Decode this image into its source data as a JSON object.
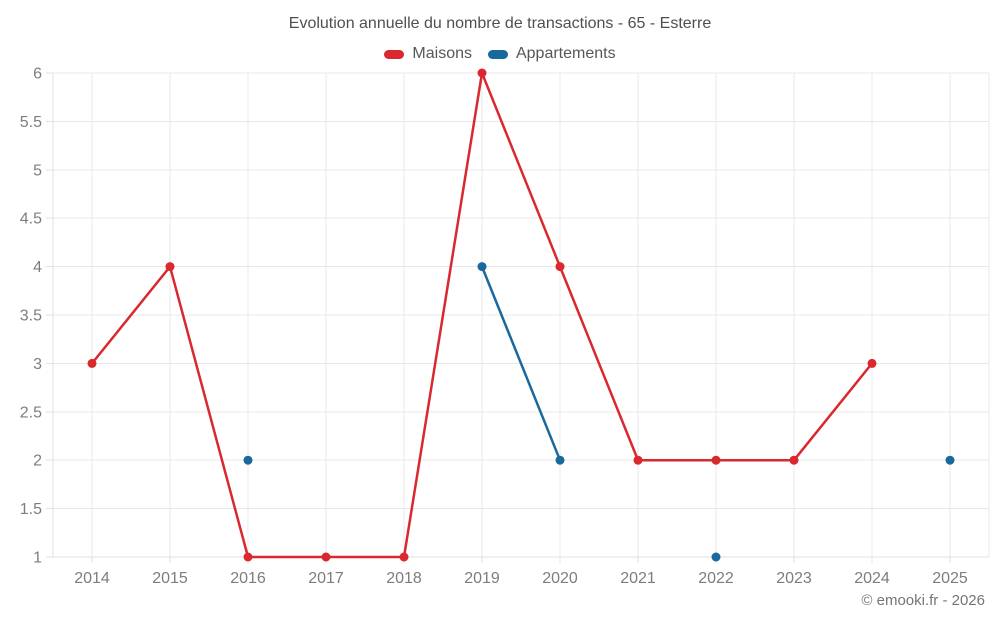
{
  "title": "Evolution annuelle du nombre de transactions - 65 - Esterre",
  "footer_credit": "© emooki.fr - 2026",
  "colors": {
    "maisons": "#d9282e",
    "appartements": "#1a699e",
    "grid": "#e8e8e8",
    "spine": "#e0e0e0",
    "tick_label": "#7d7d7d",
    "title_text": "#4f4f4f",
    "legend_text": "#575757",
    "footer_text": "#757575",
    "background": "#ffffff"
  },
  "chart_data": {
    "type": "line",
    "title": "Evolution annuelle du nombre de transactions - 65 - Esterre",
    "x": [
      "2014",
      "2015",
      "2016",
      "2017",
      "2018",
      "2019",
      "2020",
      "2021",
      "2022",
      "2023",
      "2024",
      "2025"
    ],
    "series": [
      {
        "name": "Maisons",
        "color_key": "maisons",
        "values": [
          3,
          4,
          1,
          1,
          1,
          6,
          4,
          2,
          2,
          2,
          3,
          null
        ]
      },
      {
        "name": "Appartements",
        "color_key": "appartements",
        "values": [
          null,
          null,
          2,
          null,
          null,
          4,
          2,
          null,
          1,
          null,
          null,
          2
        ]
      }
    ],
    "xlabel": "",
    "ylabel": "",
    "ylim": [
      1,
      6
    ],
    "ytick_step": 0.5,
    "grid": true,
    "legend_position": "top",
    "marker_radius": 4.5,
    "line_width": 2.5
  }
}
